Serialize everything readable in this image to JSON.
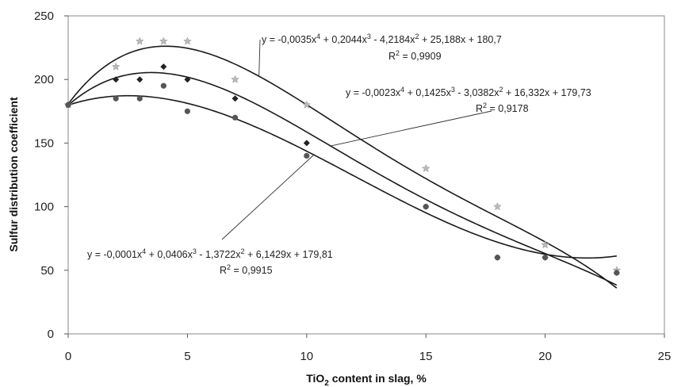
{
  "chart_data": {
    "type": "scatter",
    "title": "",
    "xlabel": {
      "pre": "TiO",
      "sub": "2",
      "post": " content in slag, %"
    },
    "ylabel": "Sulfur distribution coefficient",
    "xlim": [
      0,
      25
    ],
    "ylim": [
      0,
      250
    ],
    "xticks": [
      "0",
      "5",
      "10",
      "15",
      "20",
      "25"
    ],
    "yticks": [
      "0",
      "50",
      "100",
      "150",
      "200",
      "250"
    ],
    "grid": false,
    "legend": "none",
    "series": [
      {
        "marker": "star",
        "points": [
          [
            0,
            180
          ],
          [
            2,
            210
          ],
          [
            3,
            230
          ],
          [
            4,
            230
          ],
          [
            5,
            230
          ],
          [
            7,
            200
          ],
          [
            10,
            180
          ],
          [
            15,
            130
          ],
          [
            18,
            100
          ],
          [
            20,
            70
          ],
          [
            23,
            50
          ]
        ],
        "curve_coeffs": [
          -0.0035,
          0.2044,
          -4.2184,
          25.188,
          180.7
        ],
        "equation": {
          "a": "y = -0,0035x",
          "e1": "4",
          "b": " + 0,2044x",
          "e2": "3",
          "c": " - 4,2184x",
          "e3": "2",
          "d": " + 25,188x + 180,7"
        },
        "r2": {
          "pre": "R",
          "sup": "2",
          "post": " = 0,9909"
        }
      },
      {
        "marker": "diamond",
        "points": [
          [
            0,
            180
          ],
          [
            2,
            200
          ],
          [
            3,
            200
          ],
          [
            4,
            210
          ],
          [
            5,
            200
          ],
          [
            7,
            185
          ],
          [
            10,
            150
          ],
          [
            15,
            100
          ],
          [
            18,
            60
          ],
          [
            20,
            60
          ],
          [
            23,
            48
          ]
        ],
        "curve_coeffs": [
          -0.0023,
          0.1425,
          -3.0382,
          16.332,
          179.73
        ],
        "equation": {
          "a": "y = -0,0023x",
          "e1": "4",
          "b": " + 0,1425x",
          "e2": "3",
          "c": " - 3,0382x",
          "e3": "2",
          "d": " + 16,332x + 179,73"
        },
        "r2": {
          "pre": "R",
          "sup": "2",
          "post": " = 0,9178"
        }
      },
      {
        "marker": "circle",
        "points": [
          [
            0,
            180
          ],
          [
            2,
            185
          ],
          [
            3,
            185
          ],
          [
            4,
            195
          ],
          [
            5,
            175
          ],
          [
            7,
            170
          ],
          [
            10,
            140
          ],
          [
            15,
            100
          ],
          [
            18,
            60
          ],
          [
            20,
            60
          ],
          [
            23,
            48
          ]
        ],
        "curve_coeffs": [
          -0.0001,
          0.0406,
          -1.3722,
          6.1429,
          179.81
        ],
        "equation": {
          "a": "y = -0,0001x",
          "e1": "4",
          "b": " + 0,0406x",
          "e2": "3",
          "c": " - 1,3722x",
          "e3": "2",
          "d": " + 6,1429x + 179,81"
        },
        "r2": {
          "pre": "R",
          "sup": "2",
          "post": " = 0,9915"
        }
      }
    ],
    "colors": {
      "curve": "#1a1a1a",
      "star": "#b9b9b9",
      "diamond": "#222222",
      "circle": "#555555",
      "frame": "#8a8a8a"
    }
  }
}
